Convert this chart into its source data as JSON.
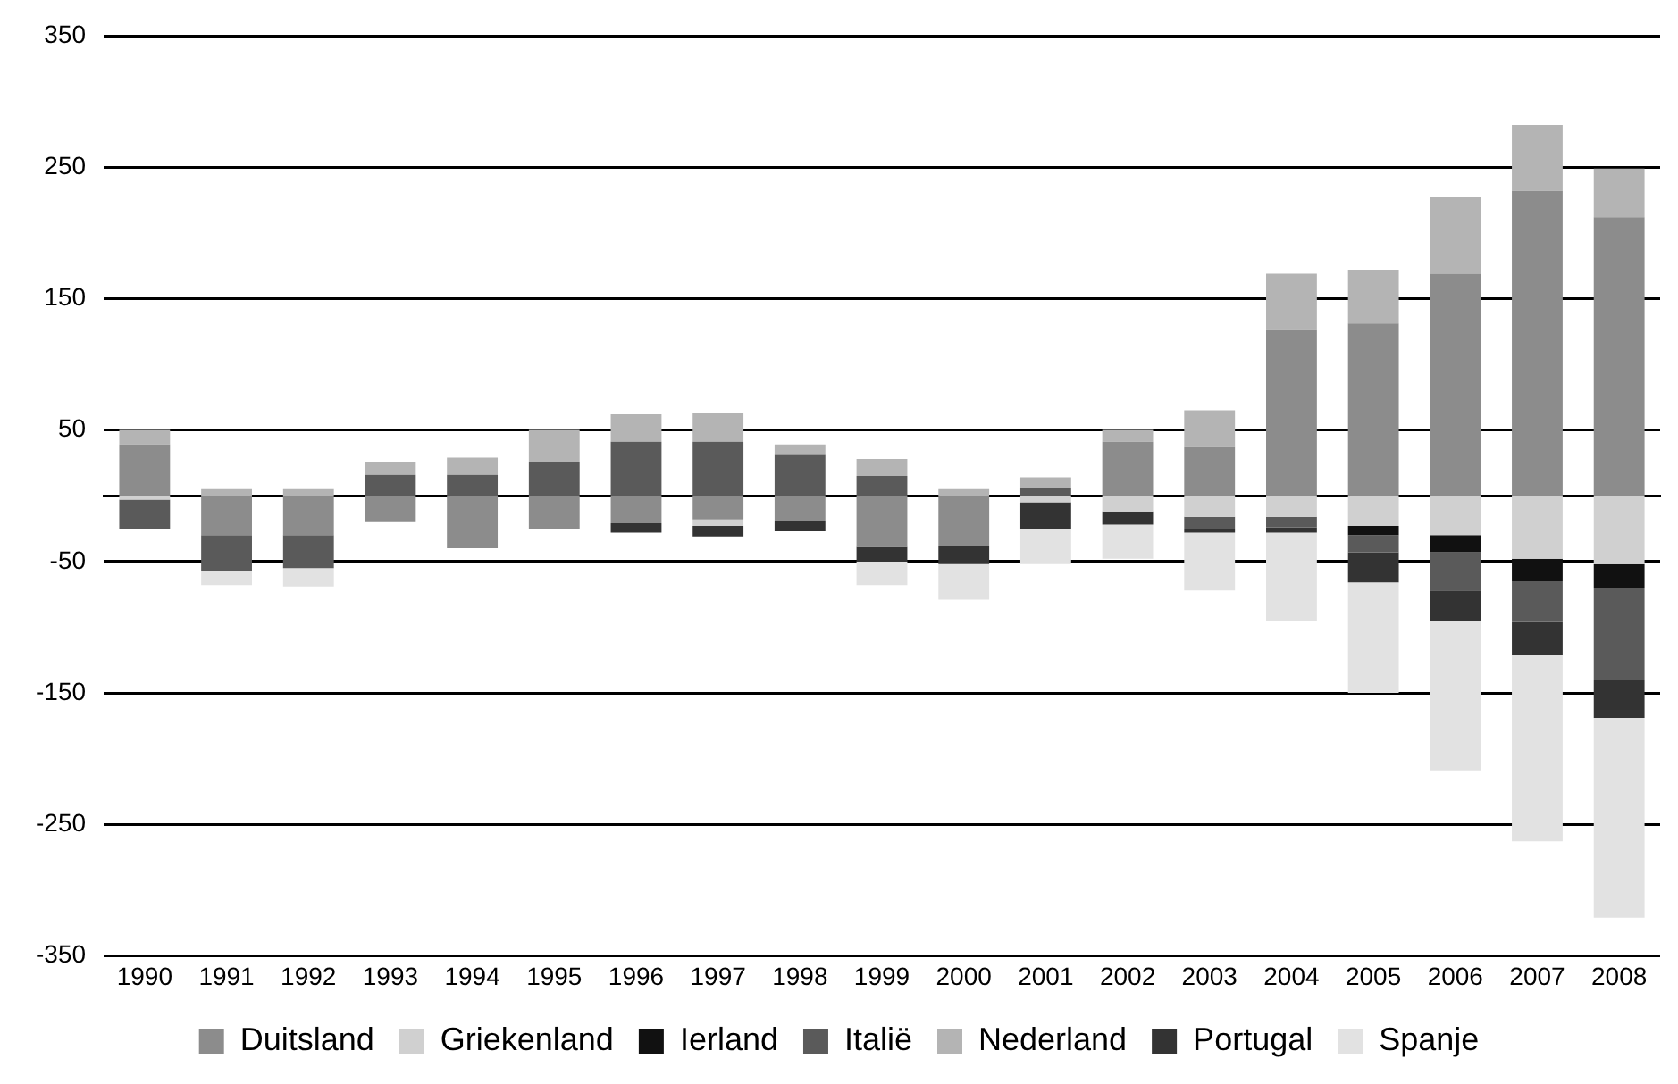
{
  "chart_data": {
    "type": "bar",
    "stacked": true,
    "categories": [
      "1990",
      "1991",
      "1992",
      "1993",
      "1994",
      "1995",
      "1996",
      "1997",
      "1998",
      "1999",
      "2000",
      "2001",
      "2002",
      "2003",
      "2004",
      "2005",
      "2006",
      "2007",
      "2008"
    ],
    "series": [
      {
        "name": "Duitsland",
        "color": "#8c8c8c",
        "values": [
          39,
          -30,
          -30,
          -20,
          -40,
          -25,
          -21,
          -18,
          -19,
          -39,
          -38,
          null,
          41,
          37,
          126,
          131,
          169,
          232,
          212
        ]
      },
      {
        "name": "Griekenland",
        "color": "#d0d0d0",
        "values": [
          -3,
          null,
          null,
          null,
          null,
          null,
          null,
          -5,
          null,
          null,
          null,
          -5,
          -12,
          -16,
          -16,
          -23,
          -30,
          -48,
          -52
        ]
      },
      {
        "name": "Ierland",
        "color": "#111111",
        "values": [
          null,
          null,
          null,
          null,
          null,
          null,
          null,
          null,
          null,
          null,
          null,
          null,
          null,
          null,
          null,
          -7,
          -13,
          -17,
          -18
        ]
      },
      {
        "name": "Italië",
        "color": "#5a5a5a",
        "values": [
          -22,
          -27,
          -25,
          16,
          16,
          26,
          41,
          41,
          31,
          15,
          null,
          6,
          null,
          -9,
          -8,
          -13,
          -29,
          -31,
          -70
        ]
      },
      {
        "name": "Nederland",
        "color": "#b4b4b4",
        "values": [
          11,
          5,
          5,
          10,
          13,
          24,
          21,
          22,
          8,
          13,
          5,
          8,
          9,
          28,
          43,
          41,
          58,
          50,
          37
        ]
      },
      {
        "name": "Portugal",
        "color": "#333333",
        "values": [
          null,
          null,
          null,
          null,
          null,
          null,
          -7,
          -8,
          -8,
          -11,
          -14,
          -20,
          -10,
          -3,
          -4,
          -23,
          -23,
          -25,
          -29
        ]
      },
      {
        "name": "Spanje",
        "color": "#e2e2e2",
        "values": [
          null,
          -11,
          -14,
          null,
          null,
          null,
          null,
          null,
          null,
          -18,
          -27,
          -27,
          -26,
          -44,
          -67,
          -84,
          -114,
          -142,
          -152
        ]
      }
    ],
    "ylim": [
      -350,
      350
    ],
    "yticks": [
      -350,
      -250,
      -150,
      -50,
      50,
      150,
      250,
      350
    ],
    "grid": "y",
    "legend": "bottom"
  }
}
